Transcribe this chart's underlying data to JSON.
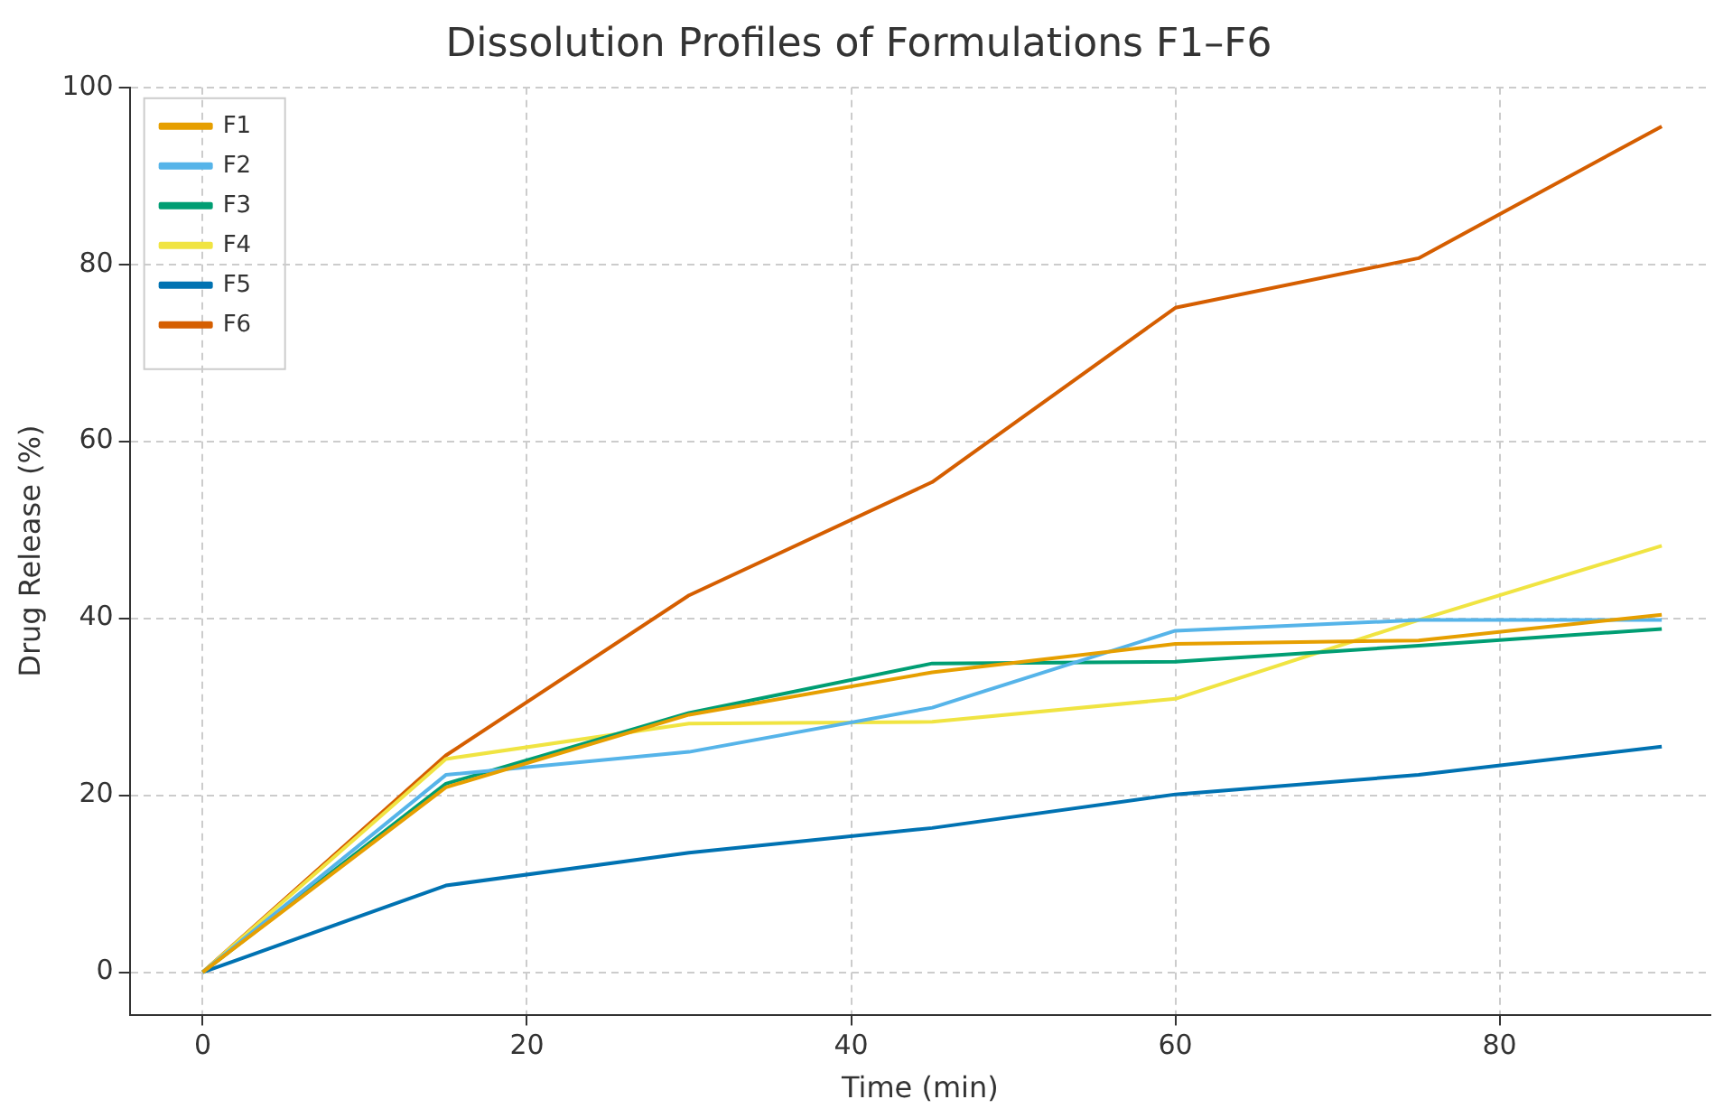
{
  "chart_data": {
    "type": "line",
    "title": "Dissolution Profiles of Formulations F1–F6",
    "xlabel": "Time (min)",
    "ylabel": "Drug Release (%)",
    "x": [
      0,
      15,
      30,
      45,
      60,
      75,
      90
    ],
    "series": [
      {
        "name": "F1",
        "color": "#e69f00",
        "values": [
          0,
          20.9,
          29.1,
          33.9,
          37.1,
          37.5,
          40.4
        ]
      },
      {
        "name": "F2",
        "color": "#56b4e9",
        "values": [
          0,
          22.3,
          24.9,
          29.9,
          38.6,
          39.8,
          39.8
        ]
      },
      {
        "name": "F3",
        "color": "#009e73",
        "values": [
          0,
          21.3,
          29.3,
          34.9,
          35.1,
          36.9,
          38.8
        ]
      },
      {
        "name": "F4",
        "color": "#f0e442",
        "values": [
          0,
          24.1,
          28.1,
          28.3,
          30.9,
          39.8,
          48.2
        ]
      },
      {
        "name": "F5",
        "color": "#0072b2",
        "values": [
          0,
          9.8,
          13.5,
          16.3,
          20.1,
          22.3,
          25.5
        ]
      },
      {
        "name": "F6",
        "color": "#d55e00",
        "values": [
          0,
          24.5,
          42.6,
          55.4,
          75.1,
          80.7,
          95.6
        ]
      }
    ],
    "xlim": [
      -4.5,
      93
    ],
    "xticks": [
      0,
      20,
      40,
      60,
      80
    ],
    "ylim": [
      -4.8,
      100
    ],
    "yticks": [
      0,
      20,
      40,
      60,
      80,
      100
    ],
    "grid": true,
    "legend": "top left",
    "marker": "none",
    "line_style": "solid"
  }
}
